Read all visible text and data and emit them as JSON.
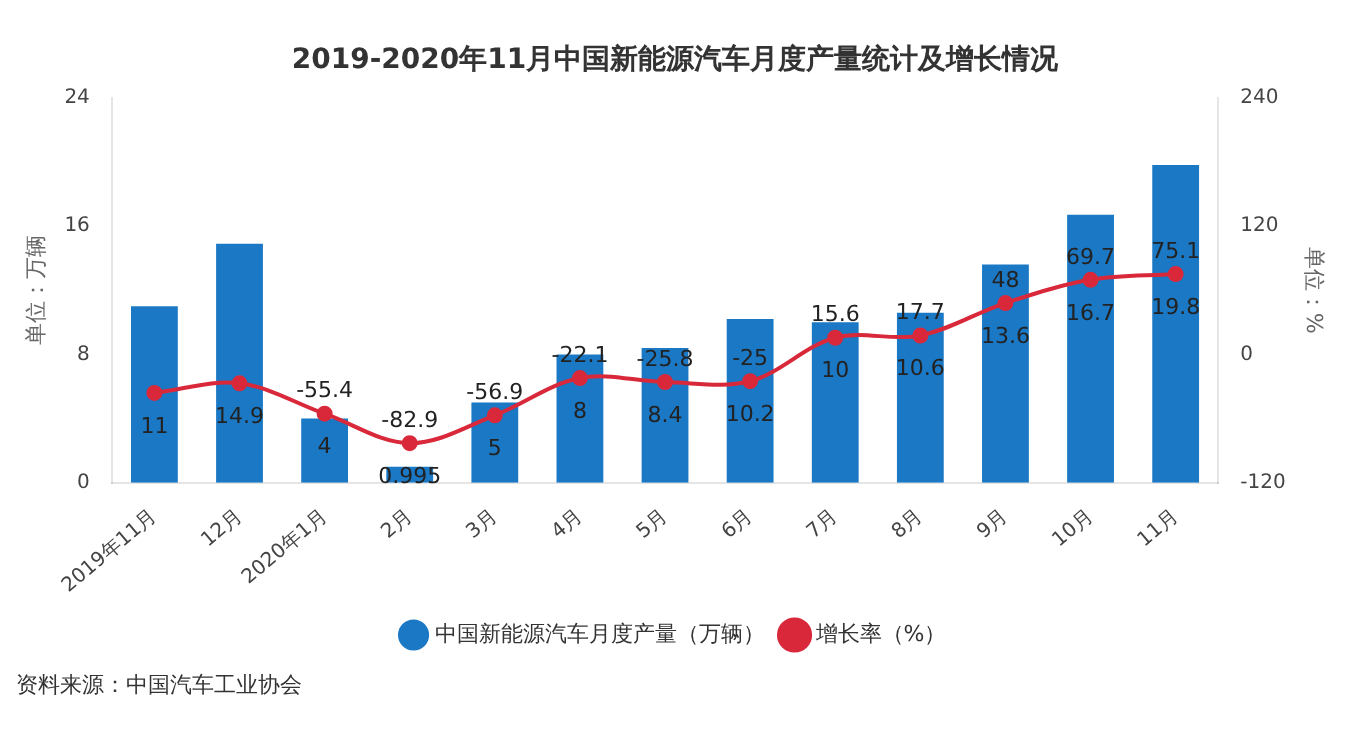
{
  "chart_data": {
    "type": "bar",
    "title": "2019-2020年11月中国新能源汽车月度产量统计及增长情况",
    "categories": [
      "2019年11月",
      "12月",
      "2020年1月",
      "2月",
      "3月",
      "4月",
      "5月",
      "6月",
      "7月",
      "8月",
      "9月",
      "10月",
      "11月"
    ],
    "series": [
      {
        "name": "中国新能源汽车月度产量（万辆）",
        "color": "#1b78c4",
        "values": [
          11,
          14.9,
          4,
          0.995,
          5,
          8,
          8.4,
          10.2,
          10,
          10.6,
          13.6,
          16.7,
          19.8
        ],
        "value_labels": [
          "11",
          "14.9",
          "4",
          "0.995",
          "5",
          "8",
          "8.4",
          "10.2",
          "10",
          "10.6",
          "13.6",
          "16.7",
          "19.8"
        ]
      },
      {
        "name": "增长率（%）",
        "type": "line",
        "axis": "y2",
        "color": "#d9283a",
        "marker": "circle",
        "values": [
          -36,
          -27,
          -55.4,
          -82.9,
          -56.9,
          -22.1,
          -25.8,
          -25,
          15.6,
          17.7,
          48,
          69.7,
          75.1
        ],
        "value_labels": [
          null,
          null,
          "-55.4",
          "-82.9",
          "-56.9",
          "-22.1",
          "-25.8",
          "-25",
          "15.6",
          "17.7",
          "48",
          "69.7",
          "75.1"
        ]
      }
    ],
    "ylabel": "单位：万辆",
    "y2label": "单位：%",
    "ylim": [
      0,
      24
    ],
    "yticks": [
      0,
      8,
      16,
      24
    ],
    "y2lim": [
      -120,
      240
    ],
    "y2ticks": [
      -120,
      0,
      120,
      240
    ],
    "grid": false,
    "legend": "bottom",
    "annotations": [
      "资料来源：中国汽车工业协会"
    ]
  }
}
